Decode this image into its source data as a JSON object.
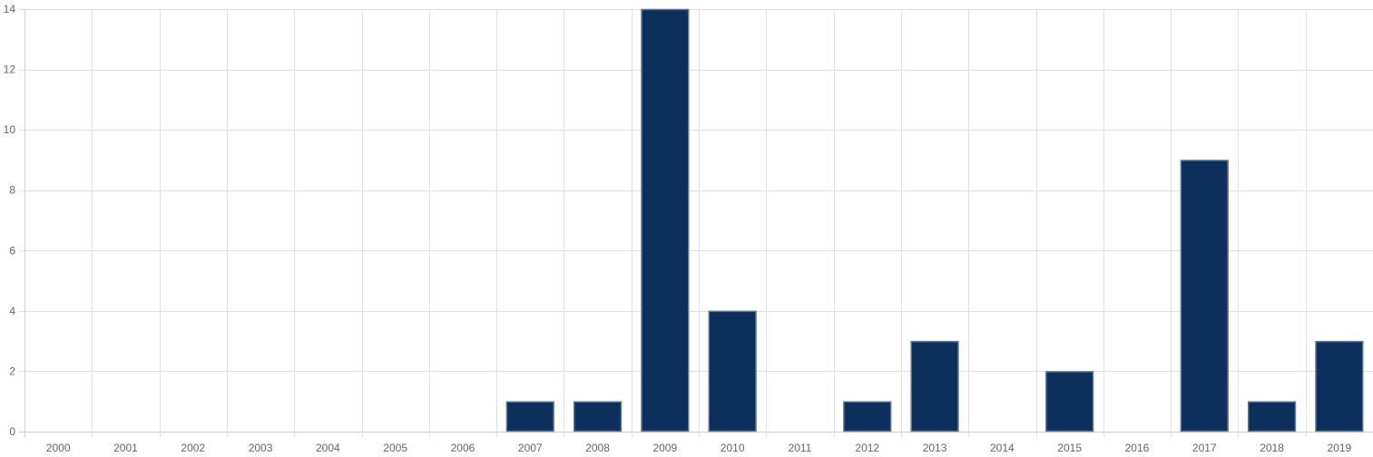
{
  "chart_data": {
    "type": "bar",
    "title": "",
    "xlabel": "",
    "ylabel": "",
    "categories": [
      "2000",
      "2001",
      "2002",
      "2003",
      "2004",
      "2005",
      "2006",
      "2007",
      "2008",
      "2009",
      "2010",
      "2011",
      "2012",
      "2013",
      "2014",
      "2015",
      "2016",
      "2017",
      "2018",
      "2019"
    ],
    "series": [
      {
        "values": [
          0,
          0,
          0,
          0,
          0,
          0,
          0,
          1,
          1,
          14,
          4,
          0,
          1,
          3,
          0,
          2,
          0,
          9,
          1,
          3
        ]
      }
    ],
    "ylim": [
      0,
      14
    ],
    "yticks": [
      0,
      2,
      4,
      6,
      8,
      10,
      12,
      14
    ],
    "grid": true,
    "legend": "none",
    "colors": {
      "bar_fill": "#0d2f5c",
      "bar_stroke": "#5f7896",
      "grid": "#e1e1e1",
      "tick_text": "#666666"
    }
  }
}
